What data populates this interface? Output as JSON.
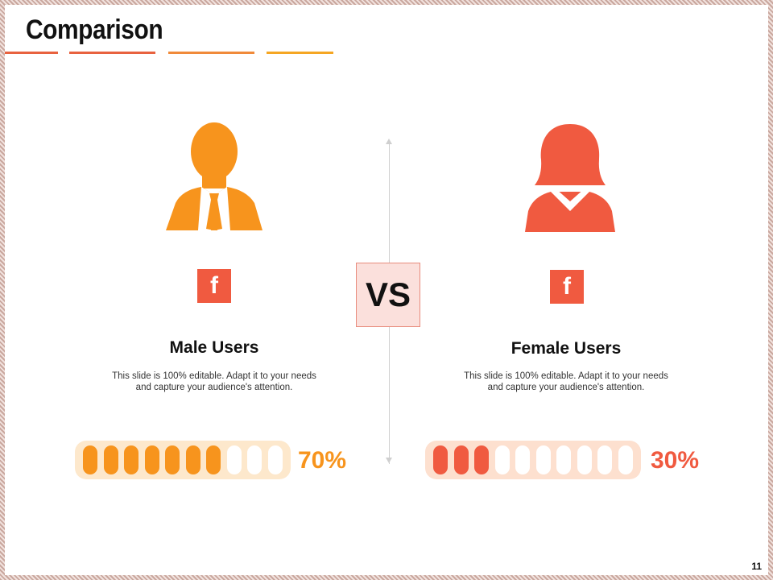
{
  "slide": {
    "title": "Comparison",
    "vs_label": "VS",
    "page_number": "11",
    "title_lines": [
      {
        "color": "#e8623f"
      },
      {
        "color": "#e8623f"
      },
      {
        "color": "#f08a3a"
      },
      {
        "color": "#f5a623"
      }
    ]
  },
  "colors": {
    "male_accent": "#f7941d",
    "female_accent": "#f05a40",
    "male_track": "#fde8cc",
    "female_track": "#fde0cf"
  },
  "male": {
    "icon": "male-user-icon",
    "social_icon": "facebook-icon",
    "social_glyph": "f",
    "title": "Male Users",
    "desc_line1": "This slide is 100% editable. Adapt it to your needs",
    "desc_line2": "and capture your audience's attention.",
    "percent_label": "70%",
    "filled_segments": 7,
    "total_segments": 10
  },
  "female": {
    "icon": "female-user-icon",
    "social_icon": "facebook-icon",
    "social_glyph": "f",
    "title": "Female Users",
    "desc_line1": "This slide is 100% editable. Adapt it to your needs",
    "desc_line2": "and capture your audience's attention.",
    "percent_label": "30%",
    "filled_segments": 3,
    "total_segments": 10
  }
}
